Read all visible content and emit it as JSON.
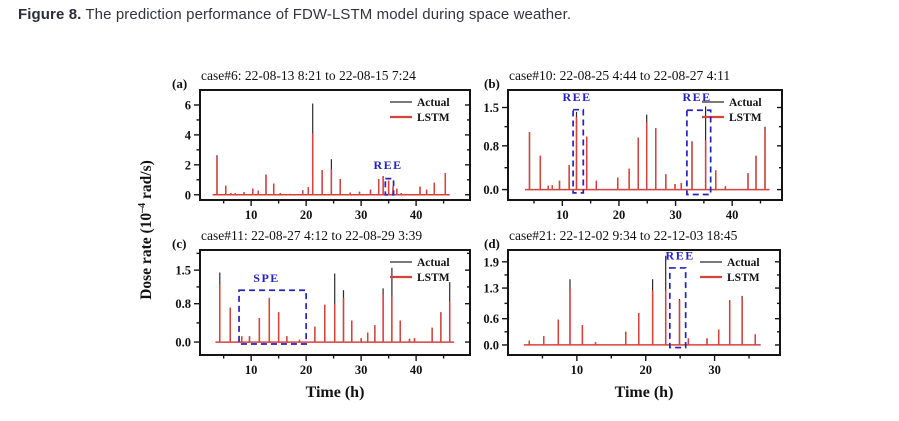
{
  "caption": {
    "label": "Figure 8.",
    "text": " The prediction performance of FDW-LSTM model during space weather."
  },
  "figure": {
    "ylabel_parts": {
      "pre": "Dose rate (10",
      "sup": "–4",
      "post": " rad/s)"
    },
    "xlabel": "Time (h)",
    "legend": [
      "Actual",
      "LSTM"
    ],
    "colors": {
      "actual": "#2b2b2b",
      "lstm": "#d8423c",
      "annotation": "#2323c0",
      "axis": "#151515",
      "text": "#111111"
    }
  },
  "chart_data": [
    {
      "type": "line",
      "panel": "(a)",
      "title": "case#6: 22-08-13 8:21 to 22-08-15 7:24",
      "xlabel": "",
      "ylabel": "Dose rate (10^-4 rad/s)",
      "xlim": [
        0.7,
        49.8
      ],
      "ylim": [
        -0.35,
        7.0
      ],
      "xticks": [
        10,
        20,
        30,
        40
      ],
      "xtick_labels": [
        "10",
        "20",
        "30",
        "40"
      ],
      "yticks": [
        0,
        2,
        4,
        6
      ],
      "ytick_labels": [
        "0",
        "2",
        "4",
        "6"
      ],
      "legend_position": "top-right",
      "grid": false,
      "series": [
        {
          "name": "Actual",
          "color": "#2b2b2b"
        },
        {
          "name": "LSTM",
          "color": "#d8423c"
        }
      ],
      "spikes_x_actual_lstm": [
        [
          3.8,
          2.64,
          2.5
        ],
        [
          5.4,
          0.6,
          0.6
        ],
        [
          6.3,
          0.12,
          0.12
        ],
        [
          7.1,
          0.1,
          0.1
        ],
        [
          8.7,
          0.18,
          0.18
        ],
        [
          10.3,
          0.42,
          0.42
        ],
        [
          11.3,
          0.28,
          0.28
        ],
        [
          12.7,
          1.35,
          1.35
        ],
        [
          14.1,
          0.75,
          0.75
        ],
        [
          15.3,
          0.12,
          0.12
        ],
        [
          17.1,
          0.06,
          0.06
        ],
        [
          19.4,
          0.3,
          0.3
        ],
        [
          20.4,
          0.5,
          0.5
        ],
        [
          21.2,
          6.1,
          4.1
        ],
        [
          22.9,
          1.65,
          1.65
        ],
        [
          24.6,
          2.37,
          1.7
        ],
        [
          26.2,
          1.05,
          1.05
        ],
        [
          28.0,
          0.15,
          0.15
        ],
        [
          29.7,
          0.2,
          0.2
        ],
        [
          31.7,
          0.35,
          0.35
        ],
        [
          33.2,
          1.05,
          1.05
        ],
        [
          34.0,
          1.25,
          1.25
        ],
        [
          35.0,
          0.95,
          0.95
        ],
        [
          35.8,
          0.55,
          0.55
        ],
        [
          36.5,
          0.4,
          0.4
        ],
        [
          37.3,
          0.12,
          0.12
        ],
        [
          40.7,
          0.55,
          0.55
        ],
        [
          41.9,
          0.35,
          0.35
        ],
        [
          43.3,
          0.8,
          0.8
        ],
        [
          45.3,
          1.45,
          1.45
        ]
      ],
      "annotations": [
        {
          "label": "REE",
          "x0": 34.4,
          "x1": 35.9,
          "y0": 0,
          "y1": 1.08,
          "label_x": 34.9,
          "label_y": 1.72
        }
      ]
    },
    {
      "type": "line",
      "panel": "(b)",
      "title": "case#10: 22-08-25 4:44 to 22-08-27 4:11",
      "xlabel": "",
      "ylabel": "Dose rate (10^-4 rad/s)",
      "xlim": [
        0.4,
        48.8
      ],
      "ylim": [
        -0.19,
        1.82
      ],
      "xticks": [
        10,
        20,
        30,
        40
      ],
      "xtick_labels": [
        "10",
        "20",
        "30",
        "40"
      ],
      "yticks": [
        0,
        0.8,
        1.5
      ],
      "ytick_labels": [
        "0.0",
        "0.8",
        "1.5"
      ],
      "legend_position": "top-right",
      "grid": false,
      "series": [
        {
          "name": "Actual",
          "color": "#2b2b2b"
        },
        {
          "name": "LSTM",
          "color": "#d8423c"
        }
      ],
      "spikes_x_actual_lstm": [
        [
          4.2,
          1.05,
          1.05
        ],
        [
          6.1,
          0.62,
          0.62
        ],
        [
          7.5,
          0.07,
          0.07
        ],
        [
          8.2,
          0.08,
          0.08
        ],
        [
          9.5,
          0.16,
          0.16
        ],
        [
          11.2,
          0.45,
          0.45
        ],
        [
          12.5,
          1.42,
          1.33
        ],
        [
          14.3,
          0.97,
          0.97
        ],
        [
          16.0,
          0.16,
          0.16
        ],
        [
          19.8,
          0.22,
          0.22
        ],
        [
          21.8,
          0.38,
          0.38
        ],
        [
          23.4,
          0.95,
          0.95
        ],
        [
          24.9,
          1.37,
          1.22
        ],
        [
          26.5,
          1.12,
          1.12
        ],
        [
          28.3,
          0.28,
          0.28
        ],
        [
          29.9,
          0.1,
          0.1
        ],
        [
          31.0,
          0.12,
          0.12
        ],
        [
          32.9,
          0.88,
          0.88
        ],
        [
          35.3,
          1.52,
          0.9
        ],
        [
          37.1,
          0.35,
          0.35
        ],
        [
          38.8,
          0.06,
          0.06
        ],
        [
          42.8,
          0.3,
          0.3
        ],
        [
          44.2,
          0.62,
          0.62
        ],
        [
          45.8,
          1.15,
          1.1
        ]
      ],
      "annotations": [
        {
          "label": "REE",
          "x0": 11.9,
          "x1": 13.7,
          "y0": -0.06,
          "y1": 1.46,
          "label_x": 12.6,
          "label_y": 1.62
        },
        {
          "label": "REE",
          "x0": 32.0,
          "x1": 36.2,
          "y0": -0.09,
          "y1": 1.45,
          "label_x": 33.8,
          "label_y": 1.62
        }
      ]
    },
    {
      "type": "line",
      "panel": "(c)",
      "title": "case#11: 22-08-27 4:12 to 22-08-29 3:39",
      "xlabel": "Time (h)",
      "ylabel": "Dose rate (10^-4 rad/s)",
      "xlim": [
        0.7,
        49.8
      ],
      "ylim": [
        -0.27,
        1.92
      ],
      "xticks": [
        10,
        20,
        30,
        40
      ],
      "xtick_labels": [
        "10",
        "20",
        "30",
        "40"
      ],
      "yticks": [
        0,
        0.8,
        1.5
      ],
      "ytick_labels": [
        "0.0",
        "0.8",
        "1.5"
      ],
      "legend_position": "top-right",
      "grid": false,
      "series": [
        {
          "name": "Actual",
          "color": "#2b2b2b"
        },
        {
          "name": "LSTM",
          "color": "#d8423c"
        }
      ],
      "spikes_x_actual_lstm": [
        [
          4.3,
          1.45,
          1.2
        ],
        [
          6.2,
          0.72,
          0.72
        ],
        [
          8.3,
          0.12,
          0.12
        ],
        [
          9.7,
          0.12,
          0.12
        ],
        [
          11.5,
          0.5,
          0.5
        ],
        [
          13.3,
          0.92,
          0.92
        ],
        [
          15.0,
          0.62,
          0.62
        ],
        [
          16.5,
          0.12,
          0.12
        ],
        [
          18.8,
          0.05,
          0.05
        ],
        [
          21.6,
          0.32,
          0.32
        ],
        [
          23.4,
          0.78,
          0.78
        ],
        [
          25.2,
          1.43,
          0.8
        ],
        [
          26.8,
          1.08,
          0.92
        ],
        [
          28.3,
          0.45,
          0.45
        ],
        [
          30.0,
          0.08,
          0.08
        ],
        [
          31.2,
          0.2,
          0.2
        ],
        [
          32.5,
          0.35,
          0.35
        ],
        [
          34.0,
          1.12,
          1.0
        ],
        [
          35.6,
          1.55,
          0.95
        ],
        [
          37.1,
          0.45,
          0.45
        ],
        [
          38.8,
          0.07,
          0.07
        ],
        [
          39.7,
          0.08,
          0.08
        ],
        [
          42.9,
          0.3,
          0.3
        ],
        [
          44.5,
          0.62,
          0.62
        ],
        [
          46.1,
          1.25,
          0.85
        ]
      ],
      "annotations": [
        {
          "label": "SPE",
          "x0": 7.8,
          "x1": 20.0,
          "y0": -0.04,
          "y1": 1.08,
          "label_x": 12.8,
          "label_y": 1.25
        }
      ]
    },
    {
      "type": "line",
      "panel": "(d)",
      "title": "case#21: 22-12-02 9:34 to 22-12-03 18:45",
      "xlabel": "Time (h)",
      "ylabel": "Dose rate (10^-4 rad/s)",
      "xlim": [
        0,
        39.5
      ],
      "ylim": [
        -0.23,
        2.17
      ],
      "xticks": [
        10,
        20,
        30
      ],
      "xtick_labels": [
        "10",
        "20",
        "30"
      ],
      "yticks": [
        0,
        0.6,
        1.3,
        1.9
      ],
      "ytick_labels": [
        "0.0",
        "0.6",
        "1.3",
        "1.9"
      ],
      "legend_position": "top-right",
      "grid": false,
      "series": [
        {
          "name": "Actual",
          "color": "#2b2b2b"
        },
        {
          "name": "LSTM",
          "color": "#d8423c"
        }
      ],
      "spikes_x_actual_lstm": [
        [
          3.1,
          0.1,
          0.1
        ],
        [
          5.2,
          0.2,
          0.2
        ],
        [
          7.3,
          0.58,
          0.58
        ],
        [
          9.0,
          1.5,
          1.28
        ],
        [
          10.8,
          0.45,
          0.45
        ],
        [
          12.7,
          0.06,
          0.06
        ],
        [
          17.1,
          0.3,
          0.3
        ],
        [
          19.0,
          0.73,
          0.73
        ],
        [
          21.0,
          1.5,
          1.25
        ],
        [
          22.9,
          2.04,
          1.25
        ],
        [
          24.9,
          1.05,
          1.02
        ],
        [
          26.2,
          0.15,
          0.15
        ],
        [
          28.9,
          0.15,
          0.15
        ],
        [
          30.6,
          0.35,
          0.35
        ],
        [
          32.2,
          1.02,
          1.0
        ],
        [
          34.0,
          1.12,
          1.08
        ],
        [
          35.9,
          0.24,
          0.24
        ]
      ],
      "annotations": [
        {
          "label": "REE",
          "x0": 23.5,
          "x1": 25.8,
          "y0": -0.06,
          "y1": 1.76,
          "label_x": 25.0,
          "label_y": 1.95
        }
      ]
    }
  ]
}
